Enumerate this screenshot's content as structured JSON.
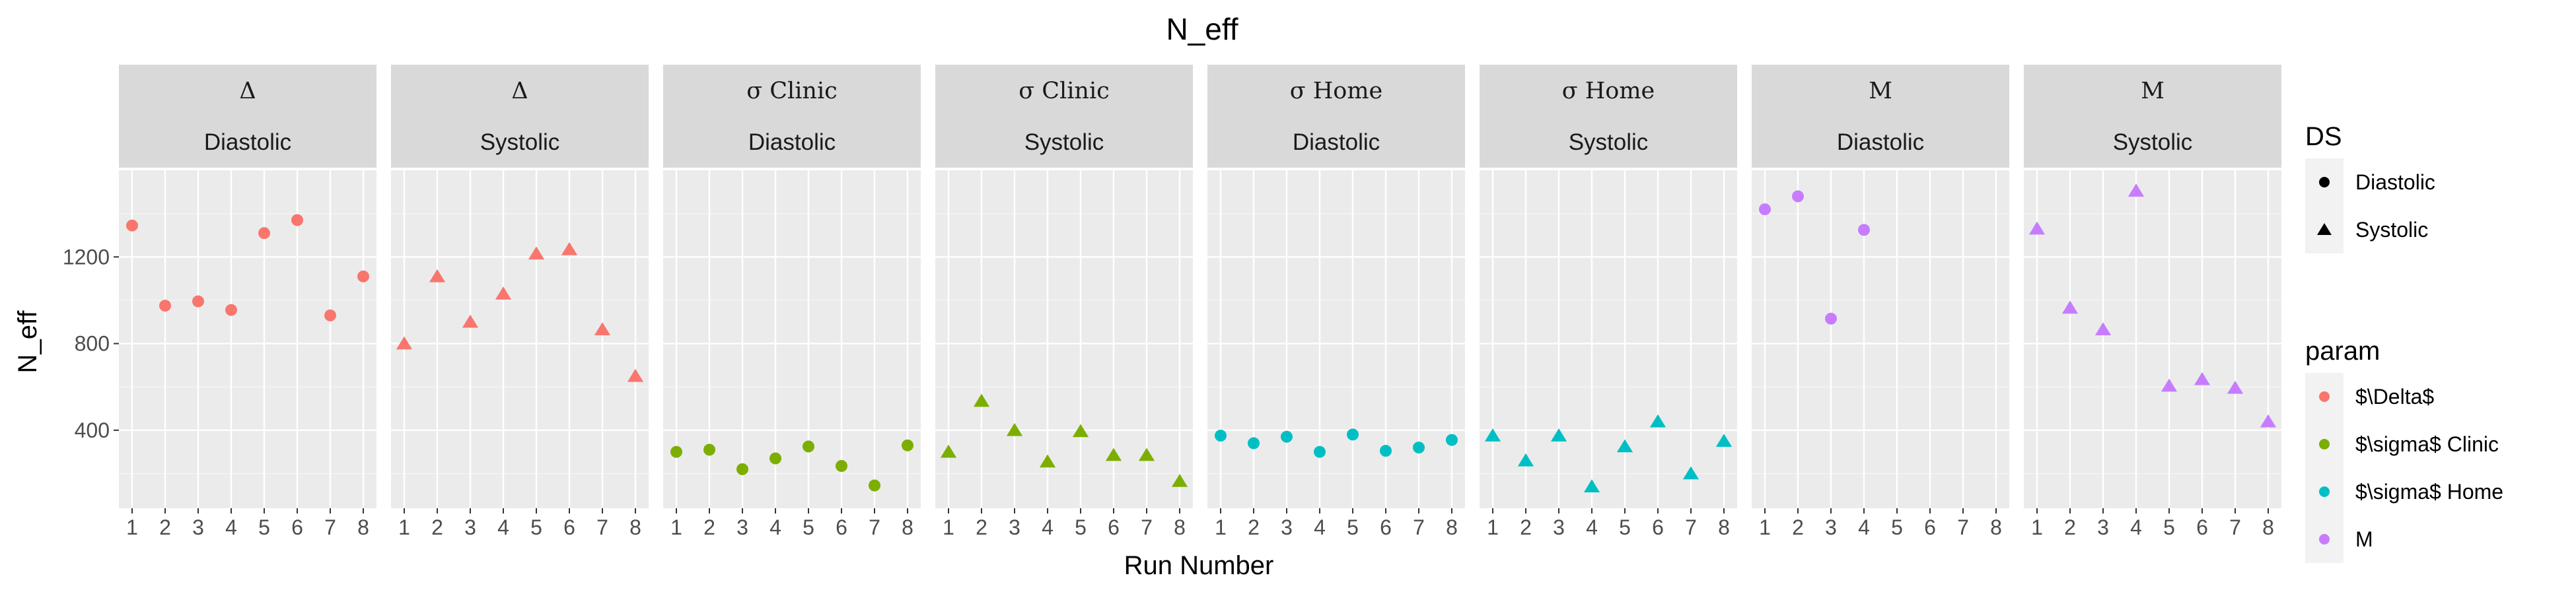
{
  "chart_data": {
    "type": "scatter",
    "title": "N_eff",
    "xlabel": "Run Number",
    "ylabel": "N_eff",
    "x_ticks": [
      1,
      2,
      3,
      4,
      5,
      6,
      7,
      8
    ],
    "y_ticks": [
      400,
      800,
      1200
    ],
    "ylim": [
      40,
      1600
    ],
    "xlim": [
      0.6,
      8.4
    ],
    "grid": true,
    "legend_position": "right",
    "legends": [
      {
        "title": "DS",
        "entries": [
          {
            "label": "Diastolic",
            "shape": "circle"
          },
          {
            "label": "Systolic",
            "shape": "triangle"
          }
        ]
      },
      {
        "title": "param",
        "entries": [
          {
            "label": "$\\Delta$",
            "color": "#F8766D"
          },
          {
            "label": "$\\sigma$ Clinic",
            "color": "#7CAE00"
          },
          {
            "label": "$\\sigma$ Home",
            "color": "#00BFC4"
          },
          {
            "label": "M",
            "color": "#C77CFF"
          }
        ]
      }
    ],
    "panels": [
      {
        "param": "Δ",
        "param_serif": true,
        "ds": "Diastolic",
        "shape": "circle",
        "color": "#F8766D",
        "x": [
          1,
          2,
          3,
          4,
          5,
          6,
          7,
          8
        ],
        "y": [
          1345,
          975,
          995,
          955,
          1310,
          1370,
          930,
          1110
        ]
      },
      {
        "param": "Δ",
        "param_serif": true,
        "ds": "Systolic",
        "shape": "triangle",
        "color": "#F8766D",
        "x": [
          1,
          2,
          3,
          4,
          5,
          6,
          7,
          8
        ],
        "y": [
          800,
          1110,
          900,
          1030,
          1215,
          1235,
          865,
          650
        ]
      },
      {
        "param": "σ Clinic",
        "param_serif": true,
        "ds": "Diastolic",
        "shape": "circle",
        "color": "#7CAE00",
        "x": [
          1,
          2,
          3,
          4,
          5,
          6,
          7,
          8
        ],
        "y": [
          300,
          310,
          220,
          270,
          325,
          235,
          145,
          330
        ]
      },
      {
        "param": "σ Clinic",
        "param_serif": true,
        "ds": "Systolic",
        "shape": "triangle",
        "color": "#7CAE00",
        "x": [
          1,
          2,
          3,
          4,
          5,
          6,
          7,
          8
        ],
        "y": [
          300,
          535,
          400,
          255,
          395,
          285,
          285,
          165
        ]
      },
      {
        "param": "σ Home",
        "param_serif": true,
        "ds": "Diastolic",
        "shape": "circle",
        "color": "#00BFC4",
        "x": [
          1,
          2,
          3,
          4,
          5,
          6,
          7,
          8
        ],
        "y": [
          375,
          340,
          370,
          300,
          380,
          305,
          320,
          355
        ]
      },
      {
        "param": "σ Home",
        "param_serif": true,
        "ds": "Systolic",
        "shape": "triangle",
        "color": "#00BFC4",
        "x": [
          1,
          2,
          3,
          4,
          5,
          6,
          7,
          8
        ],
        "y": [
          375,
          260,
          375,
          140,
          325,
          440,
          200,
          350
        ]
      },
      {
        "param": "M",
        "param_serif": true,
        "ds": "Diastolic",
        "shape": "circle",
        "color": "#C77CFF",
        "x": [
          1,
          2,
          3,
          4
        ],
        "y": [
          1420,
          1480,
          915,
          1325
        ]
      },
      {
        "param": "M",
        "param_serif": true,
        "ds": "Systolic",
        "shape": "triangle",
        "color": "#C77CFF",
        "x": [
          1,
          2,
          3,
          4,
          5,
          6,
          7,
          8
        ],
        "y": [
          1330,
          965,
          865,
          1505,
          605,
          635,
          595,
          440
        ]
      }
    ]
  },
  "colors": {
    "panel_background": "#EBEBEB",
    "strip_background": "#D9D9D9",
    "grid_major": "#FFFFFF",
    "legend_key_background": "#F2F2F2"
  }
}
